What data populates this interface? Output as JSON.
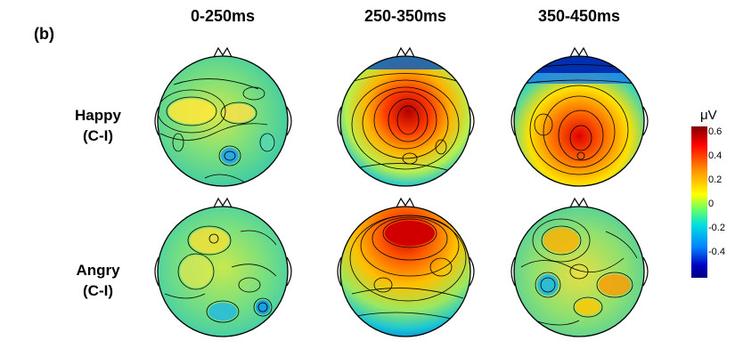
{
  "panel_label": "(b)",
  "columns": [
    "0-250ms",
    "250-350ms",
    "350-450ms"
  ],
  "rows": [
    {
      "line1": "Happy",
      "line2": "(C-I)"
    },
    {
      "line1": "Angry",
      "line2": "(C-I)"
    }
  ],
  "colorbar": {
    "unit": "μV",
    "ticks": [
      "0.6",
      "0.4",
      "0.2",
      "0",
      "-0.2",
      "-0.4"
    ]
  },
  "colors": {
    "max": "#800000",
    "high": "#ff0000",
    "mid_high": "#ff9900",
    "mid": "#ffff00",
    "zero": "#66ff66",
    "low": "#00e0e0",
    "min": "#000080"
  }
}
